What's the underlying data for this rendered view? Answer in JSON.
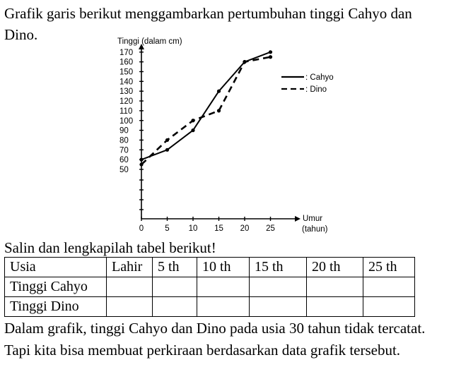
{
  "intro_text": "Grafik garis berikut menggambarkan pertumbuhan tinggi Cahyo dan Dino.",
  "instruction_text": "Salin dan lengkapilah tabel berikut!",
  "closing_text": "Dalam grafik, tinggi Cahyo dan Dino pada usia 30 tahun tidak tercatat. Tapi kita bisa membuat perkiraan berdasarkan data grafik tersebut.",
  "table": {
    "header": [
      "Usia",
      "Lahir",
      "5 th",
      "10 th",
      "15 th",
      "20 th",
      "25 th"
    ],
    "rows": [
      {
        "label": "Tinggi Cahyo",
        "cells": [
          "",
          "",
          "",
          "",
          "",
          ""
        ]
      },
      {
        "label": "Tinggi Dino",
        "cells": [
          "",
          "",
          "",
          "",
          "",
          ""
        ]
      }
    ]
  },
  "chart_data": {
    "type": "line",
    "title": "",
    "ylabel": "Tinggi (dalam cm)",
    "xlabel": "Umur (tahun)",
    "x_ticks": [
      0,
      5,
      10,
      15,
      20,
      25
    ],
    "y_ticks": [
      50,
      60,
      70,
      80,
      90,
      100,
      110,
      120,
      130,
      140,
      150,
      160,
      170
    ],
    "legend_position": "right",
    "series": [
      {
        "name": "Cahyo",
        "style": "solid",
        "x": [
          0,
          5,
          10,
          15,
          20,
          25
        ],
        "y": [
          60,
          70,
          90,
          130,
          160,
          170
        ]
      },
      {
        "name": "Dino",
        "style": "dashed",
        "x": [
          0,
          5,
          10,
          15,
          20,
          25
        ],
        "y": [
          55,
          80,
          100,
          110,
          160,
          165
        ]
      }
    ],
    "legend": [
      {
        "name": "Cahyo",
        "label": ": Cahyo",
        "style": "solid"
      },
      {
        "name": "Dino",
        "label": ": Dino",
        "style": "dashed"
      }
    ]
  }
}
